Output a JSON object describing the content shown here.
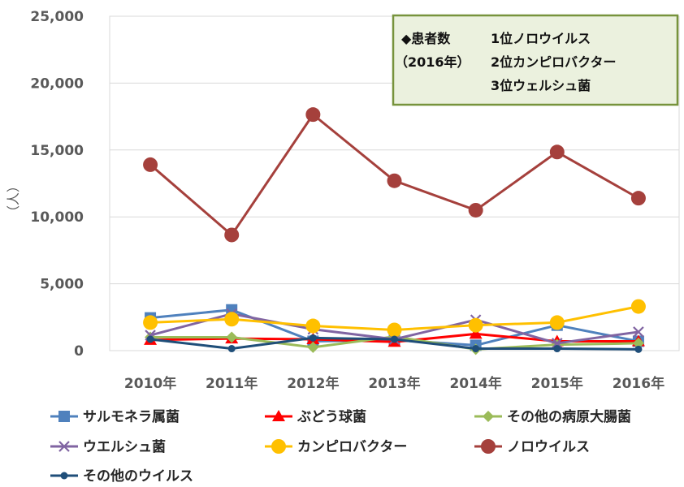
{
  "chart_data": {
    "type": "line",
    "ylabel": "（人）",
    "ylim": [
      0,
      25000
    ],
    "yticks": [
      "0",
      "5,000",
      "10,000",
      "15,000",
      "20,000",
      "25,000"
    ],
    "ytick_values": [
      0,
      5000,
      10000,
      15000,
      20000,
      25000
    ],
    "categories": [
      "2010年",
      "2011年",
      "2012年",
      "2013年",
      "2014年",
      "2015年",
      "2016年"
    ],
    "grid": true,
    "legend_position": "bottom",
    "series": [
      {
        "name": "サルモネラ属菌",
        "color": "#4F81BD",
        "marker": "square",
        "values": [
          2450,
          3050,
          700,
          800,
          400,
          1900,
          700
        ]
      },
      {
        "name": "ぶどう球菌",
        "color": "#FF0000",
        "marker": "triangle",
        "values": [
          800,
          900,
          850,
          650,
          1250,
          700,
          700
        ]
      },
      {
        "name": "その他の病原大腸菌",
        "color": "#9BBB59",
        "marker": "diamond",
        "values": [
          1000,
          1000,
          250,
          1050,
          100,
          450,
          550
        ]
      },
      {
        "name": "ウエルシュ菌",
        "color": "#8064A2",
        "marker": "x",
        "values": [
          1150,
          2750,
          1600,
          850,
          2300,
          550,
          1400
        ]
      },
      {
        "name": "カンピロバクター",
        "color": "#FFC000",
        "marker": "circle-large",
        "values": [
          2100,
          2350,
          1850,
          1550,
          1900,
          2100,
          3300
        ]
      },
      {
        "name": "ノロウイルス",
        "color": "#A5403C",
        "marker": "circle-large",
        "values": [
          13900,
          8650,
          17650,
          12700,
          10500,
          14850,
          11400
        ]
      },
      {
        "name": "その他のウイルス",
        "color": "#1F4E79",
        "marker": "circle-small",
        "values": [
          850,
          150,
          950,
          850,
          150,
          150,
          100
        ]
      }
    ],
    "annotation": {
      "line1_label": "◆患者数",
      "line1_value": "1位ノロウイルス",
      "line2_label": "（2016年）",
      "line2_value": "2位カンピロバクター",
      "line3_value": "3位ウェルシュ菌",
      "fill": "#EBF1DE",
      "border": "#77933C"
    }
  }
}
